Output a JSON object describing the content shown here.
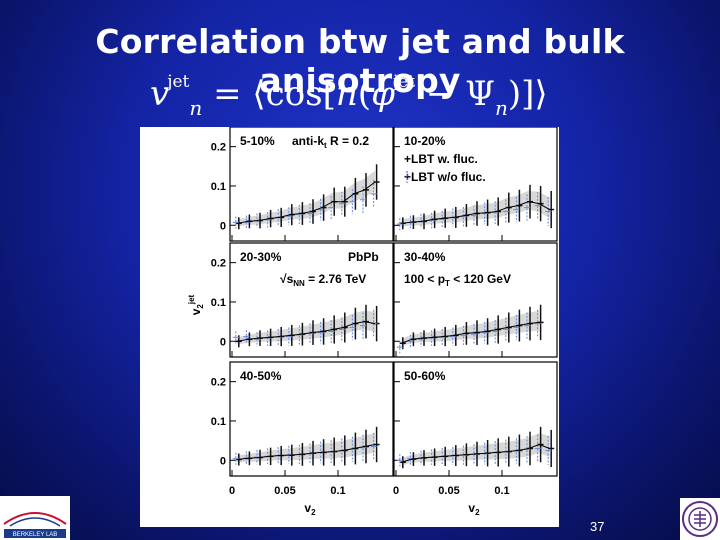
{
  "slide": {
    "title": "Correlation btw jet and bulk anisotropy",
    "formula": {
      "lhs_symbol": "v",
      "lhs_sup": "jet",
      "lhs_sub": "n",
      "rhs_prefix": "= ⟨cos[",
      "n": "n",
      "phi": "φ",
      "phi_sup": "jet",
      "minus": " − Ψ",
      "psi_sub": "n",
      "rhs_suffix": ")]⟩"
    },
    "page_number": "37",
    "logo_left_text": "BERKELEY LAB"
  },
  "colors": {
    "background": "#1424a6",
    "lbt_fluc": "#111111",
    "lbt_wo_fluc": "#6f8fe0",
    "data_band": "#222222"
  },
  "chart_data": {
    "type": "scatter",
    "title": "",
    "xlabel": "v2",
    "ylabel": "v2jet",
    "xlim": [
      0,
      0.15
    ],
    "ylim": [
      -0.04,
      0.25
    ],
    "x_ticks": [
      "0",
      "0.05",
      "0.1"
    ],
    "y_ticks": [
      "0",
      "0.1",
      "0.2"
    ],
    "legend": {
      "entries": [
        "LBT w. fluc.",
        "LBT w/o fluc."
      ],
      "placement": "top-right panel"
    },
    "panels": [
      {
        "label": "5-10% anti-kt R = 0.2",
        "lines": [
          "5-10%",
          "anti-k",
          "t",
          " R = 0.2"
        ],
        "series": [
          {
            "name": "LBT w. fluc.",
            "x": [
              0.005,
              0.015,
              0.025,
              0.035,
              0.045,
              0.055,
              0.065,
              0.075,
              0.085,
              0.095,
              0.105,
              0.115,
              0.125,
              0.135
            ],
            "y": [
              0.005,
              0.01,
              0.012,
              0.017,
              0.02,
              0.027,
              0.03,
              0.035,
              0.045,
              0.06,
              0.06,
              0.08,
              0.09,
              0.11
            ]
          },
          {
            "name": "LBT w/o fluc.",
            "x": [
              0.005,
              0.015,
              0.025,
              0.035,
              0.045,
              0.055,
              0.065,
              0.075,
              0.085,
              0.095,
              0.105,
              0.115,
              0.125,
              0.135
            ],
            "y": [
              0.007,
              0.008,
              0.012,
              0.014,
              0.02,
              0.023,
              0.028,
              0.03,
              0.04,
              0.045,
              0.055,
              0.06,
              0.065,
              0.08
            ]
          }
        ]
      },
      {
        "label": "10-20%",
        "lines": [
          "10-20%"
        ],
        "series": [
          {
            "name": "LBT w. fluc.",
            "x": [
              0.005,
              0.015,
              0.025,
              0.035,
              0.045,
              0.055,
              0.065,
              0.075,
              0.085,
              0.095,
              0.105,
              0.115,
              0.125,
              0.135,
              0.145
            ],
            "y": [
              0.005,
              0.008,
              0.01,
              0.015,
              0.018,
              0.02,
              0.025,
              0.03,
              0.032,
              0.035,
              0.045,
              0.05,
              0.06,
              0.055,
              0.04
            ]
          },
          {
            "name": "LBT w/o fluc.",
            "x": [
              0.005,
              0.015,
              0.025,
              0.035,
              0.045,
              0.055,
              0.065,
              0.075,
              0.085,
              0.095,
              0.105,
              0.115,
              0.125,
              0.135,
              0.145
            ],
            "y": [
              0.003,
              0.007,
              0.01,
              0.012,
              0.015,
              0.02,
              0.022,
              0.025,
              0.03,
              0.032,
              0.035,
              0.04,
              0.045,
              0.05,
              0.035
            ]
          }
        ]
      },
      {
        "label": "20-30% PbPb √sNN = 2.76 TeV",
        "lines": [
          "20-30%",
          "PbPb",
          "√s",
          "NN",
          " = 2.76 TeV"
        ],
        "series": [
          {
            "name": "LBT w. fluc.",
            "x": [
              0.005,
              0.015,
              0.025,
              0.035,
              0.045,
              0.055,
              0.065,
              0.075,
              0.085,
              0.095,
              0.105,
              0.115,
              0.125,
              0.135
            ],
            "y": [
              0.0,
              0.005,
              0.008,
              0.01,
              0.012,
              0.015,
              0.018,
              0.022,
              0.025,
              0.03,
              0.035,
              0.045,
              0.05,
              0.045
            ]
          },
          {
            "name": "LBT w/o fluc.",
            "x": [
              0.005,
              0.015,
              0.025,
              0.035,
              0.045,
              0.055,
              0.065,
              0.075,
              0.085,
              0.095,
              0.105,
              0.115,
              0.125,
              0.135
            ],
            "y": [
              0.01,
              0.012,
              0.005,
              0.008,
              0.01,
              0.012,
              0.016,
              0.02,
              0.022,
              0.025,
              0.03,
              0.035,
              0.04,
              0.045
            ]
          }
        ]
      },
      {
        "label": "30-40% 100 < pT < 120 GeV",
        "lines": [
          "30-40%",
          "100 < p",
          "T",
          " < 120 GeV"
        ],
        "series": [
          {
            "name": "LBT w. fluc.",
            "x": [
              0.005,
              0.015,
              0.025,
              0.035,
              0.045,
              0.055,
              0.065,
              0.075,
              0.085,
              0.095,
              0.105,
              0.115,
              0.125,
              0.135
            ],
            "y": [
              -0.005,
              0.005,
              0.008,
              0.01,
              0.012,
              0.015,
              0.02,
              0.022,
              0.025,
              0.03,
              0.035,
              0.04,
              0.045,
              0.048
            ]
          },
          {
            "name": "LBT w/o fluc.",
            "x": [
              0.005,
              0.015,
              0.025,
              0.035,
              0.045,
              0.055,
              0.065,
              0.075,
              0.085,
              0.095,
              0.105,
              0.115,
              0.125,
              0.135
            ],
            "y": [
              -0.015,
              0.0,
              0.005,
              0.008,
              0.01,
              0.012,
              0.015,
              0.018,
              0.022,
              0.025,
              0.03,
              0.035,
              0.04,
              0.045
            ]
          }
        ]
      },
      {
        "label": "40-50%",
        "lines": [
          "40-50%"
        ],
        "series": [
          {
            "name": "LBT w. fluc.",
            "x": [
              0.005,
              0.015,
              0.025,
              0.035,
              0.045,
              0.055,
              0.065,
              0.075,
              0.085,
              0.095,
              0.105,
              0.115,
              0.125,
              0.135
            ],
            "y": [
              0.002,
              0.005,
              0.007,
              0.01,
              0.012,
              0.013,
              0.015,
              0.018,
              0.02,
              0.022,
              0.025,
              0.03,
              0.035,
              0.04
            ]
          },
          {
            "name": "LBT w/o fluc.",
            "x": [
              0.005,
              0.015,
              0.025,
              0.035,
              0.045,
              0.055,
              0.065,
              0.075,
              0.085,
              0.095,
              0.105,
              0.115,
              0.125,
              0.135
            ],
            "y": [
              0.004,
              0.006,
              0.008,
              0.01,
              0.012,
              0.014,
              0.015,
              0.017,
              0.02,
              0.022,
              0.025,
              0.028,
              0.032,
              0.035
            ]
          }
        ]
      },
      {
        "label": "50-60%",
        "lines": [
          "50-60%"
        ],
        "series": [
          {
            "name": "LBT w. fluc.",
            "x": [
              0.005,
              0.015,
              0.025,
              0.035,
              0.045,
              0.055,
              0.065,
              0.075,
              0.085,
              0.095,
              0.105,
              0.115,
              0.125,
              0.135,
              0.145
            ],
            "y": [
              -0.005,
              0.003,
              0.006,
              0.008,
              0.01,
              0.012,
              0.014,
              0.016,
              0.018,
              0.02,
              0.022,
              0.025,
              0.03,
              0.04,
              0.03
            ]
          },
          {
            "name": "LBT w/o fluc.",
            "x": [
              0.005,
              0.015,
              0.025,
              0.035,
              0.045,
              0.055,
              0.065,
              0.075,
              0.085,
              0.095,
              0.105,
              0.115,
              0.125,
              0.135,
              0.145
            ],
            "y": [
              0.0,
              0.004,
              0.006,
              0.008,
              0.01,
              0.011,
              0.013,
              0.015,
              0.017,
              0.02,
              0.022,
              0.024,
              0.028,
              0.03,
              0.025
            ]
          }
        ]
      }
    ]
  }
}
